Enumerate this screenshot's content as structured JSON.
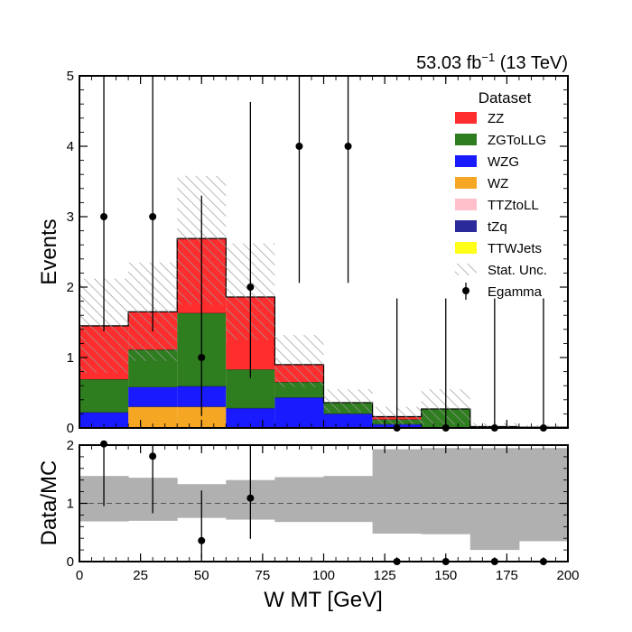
{
  "header": {
    "lumi": "53.03",
    "lumi_unit": "fb",
    "lumi_exp": "−1",
    "energy": "(13 TeV)"
  },
  "chart_data": [
    {
      "type": "stacked-histogram",
      "ylabel": "Events",
      "ylim": [
        0,
        5
      ],
      "yticks": [
        "0",
        "1",
        "2",
        "3",
        "4",
        "5"
      ],
      "xlim": [
        0,
        200
      ],
      "bin_edges": [
        0,
        20,
        40,
        60,
        80,
        100,
        120,
        140,
        160,
        180,
        200
      ],
      "legend": {
        "title": "Dataset",
        "placement": "top-right"
      },
      "stack": [
        {
          "name": "WZ",
          "color": "#f5a623",
          "values": [
            0,
            0.3,
            0.3,
            0,
            0,
            0,
            0,
            0,
            0,
            0
          ]
        },
        {
          "name": "WZG",
          "color": "#1a1aff",
          "values": [
            0.22,
            0.28,
            0.29,
            0.28,
            0.43,
            0.2,
            0.05,
            0,
            0,
            0
          ]
        },
        {
          "name": "ZGToLLG",
          "color": "#2e7d1f",
          "values": [
            0.47,
            0.53,
            1.04,
            0.55,
            0.22,
            0.16,
            0.07,
            0.27,
            0.02,
            0.01
          ]
        },
        {
          "name": "ZZ",
          "color": "#ff2d2d",
          "values": [
            0.76,
            0.54,
            1.06,
            1.03,
            0.25,
            0,
            0.04,
            0,
            0,
            0
          ]
        },
        {
          "name": "TTZtoLL",
          "color": "#ffc0cb",
          "values": [
            0,
            0,
            0,
            0,
            0,
            0,
            0,
            0,
            0,
            0
          ]
        },
        {
          "name": "tZq",
          "color": "#2a2a9a",
          "values": [
            0,
            0,
            0,
            0,
            0,
            0,
            0,
            0,
            0,
            0
          ]
        },
        {
          "name": "TTWJets",
          "color": "#ffff1a",
          "values": [
            0,
            0,
            0,
            0,
            0,
            0,
            0,
            0,
            0,
            0
          ]
        }
      ],
      "legend_order": [
        "ZZ",
        "ZGToLLG",
        "WZG",
        "WZ",
        "TTZtoLL",
        "tZq",
        "TTWJets"
      ],
      "stat_unc": {
        "name": "Stat. Unc.",
        "low": [
          0.78,
          0.95,
          1.75,
          1.25,
          0.58,
          0.22,
          0.05,
          0.05,
          0,
          0
        ],
        "high": [
          2.12,
          2.35,
          3.58,
          2.62,
          1.32,
          0.55,
          0.3,
          0.55,
          0.07,
          0.04
        ]
      },
      "data": {
        "name": "Egamma",
        "x": [
          10,
          30,
          50,
          70,
          90,
          110,
          130,
          150,
          170,
          190
        ],
        "y": [
          3,
          3,
          1,
          2,
          4,
          4,
          0,
          0,
          0,
          0
        ],
        "err_low": [
          1.63,
          1.63,
          0.83,
          1.29,
          1.94,
          1.94,
          0,
          0,
          0,
          0
        ],
        "err_high": [
          2.92,
          2.92,
          2.3,
          2.63,
          3.16,
          3.16,
          1.84,
          1.84,
          1.84,
          1.84
        ]
      }
    },
    {
      "type": "ratio",
      "ylabel": "Data/MC",
      "xlabel": "W MT [GeV]",
      "ylim": [
        0,
        2
      ],
      "yticks": [
        "0",
        "1",
        "2"
      ],
      "xticks": [
        "0",
        "25",
        "50",
        "75",
        "100",
        "125",
        "150",
        "175",
        "200"
      ],
      "reference_line": 1,
      "unc_band": {
        "low": [
          0.69,
          0.7,
          0.75,
          0.72,
          0.68,
          0.68,
          0.48,
          0.47,
          0.2,
          0.35
        ],
        "high": [
          1.47,
          1.44,
          1.33,
          1.4,
          1.45,
          1.47,
          1.93,
          1.95,
          1.95,
          1.95
        ]
      },
      "points": {
        "x": [
          10,
          30,
          50,
          70,
          130,
          150,
          170,
          190
        ],
        "y": [
          2.02,
          1.81,
          0.36,
          1.09,
          0,
          0,
          0,
          0
        ],
        "err_low": [
          1.07,
          0.98,
          0.3,
          0.7,
          0,
          0,
          0,
          0
        ],
        "err_high": [
          1.3,
          1.76,
          0.86,
          1.43,
          0,
          0,
          0,
          0
        ]
      }
    }
  ]
}
